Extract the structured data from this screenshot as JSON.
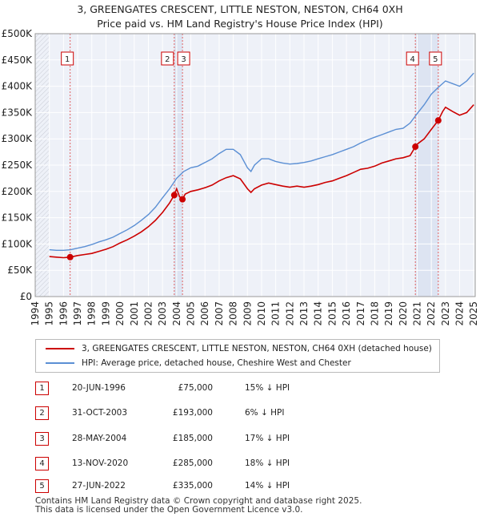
{
  "title_line1": "3, GREENGATES CRESCENT, LITTLE NESTON, NESTON, CH64 0XH",
  "title_line2": "Price paid vs. HM Land Registry's House Price Index (HPI)",
  "chart_data": {
    "type": "line",
    "title": "3, GREENGATES CRESCENT, LITTLE NESTON, NESTON, CH64 0XH",
    "subtitle": "Price paid vs. HM Land Registry's House Price Index (HPI)",
    "xlim": [
      1994,
      2025.1
    ],
    "ylim": [
      0,
      500000
    ],
    "x_ticks": [
      1994,
      1995,
      1996,
      1997,
      1998,
      1999,
      2000,
      2001,
      2002,
      2003,
      2004,
      2005,
      2006,
      2007,
      2008,
      2009,
      2010,
      2011,
      2012,
      2013,
      2014,
      2015,
      2016,
      2017,
      2018,
      2019,
      2020,
      2021,
      2022,
      2023,
      2024,
      2025
    ],
    "x_tick_labels": [
      "1994",
      "1995",
      "1996",
      "1997",
      "1998",
      "1999",
      "2000",
      "2001",
      "2002",
      "2003",
      "2004",
      "2005",
      "2006",
      "2007",
      "2008",
      "2009",
      "2010",
      "2011",
      "2012",
      "2013",
      "2014",
      "2015",
      "2016",
      "2017",
      "2018",
      "2019",
      "2020",
      "2021",
      "2022",
      "2023",
      "2024",
      "2025"
    ],
    "y_ticks": [
      0,
      50000,
      100000,
      150000,
      200000,
      250000,
      300000,
      350000,
      400000,
      450000,
      500000
    ],
    "y_tick_labels": [
      "£0",
      "£50K",
      "£100K",
      "£150K",
      "£200K",
      "£250K",
      "£300K",
      "£350K",
      "£400K",
      "£450K",
      "£500K"
    ],
    "data_start": 1995,
    "series": [
      {
        "name": "3, GREENGATES CRESCENT, LITTLE NESTON, NESTON, CH64 0XH (detached house)",
        "color": "#cc0000",
        "x": [
          1995.0,
          1995.5,
          1996.0,
          1996.47,
          1997.0,
          1997.5,
          1998.0,
          1998.5,
          1999.0,
          1999.5,
          2000.0,
          2000.5,
          2001.0,
          2001.5,
          2002.0,
          2002.5,
          2003.0,
          2003.5,
          2003.83,
          2004.0,
          2004.2,
          2004.41,
          2004.6,
          2005.0,
          2005.5,
          2006.0,
          2006.5,
          2007.0,
          2007.5,
          2008.0,
          2008.5,
          2009.0,
          2009.25,
          2009.5,
          2010.0,
          2010.5,
          2011.0,
          2011.5,
          2012.0,
          2012.5,
          2013.0,
          2013.5,
          2014.0,
          2014.5,
          2015.0,
          2015.5,
          2016.0,
          2016.5,
          2017.0,
          2017.5,
          2018.0,
          2018.5,
          2019.0,
          2019.5,
          2020.0,
          2020.5,
          2020.87,
          2021.0,
          2021.5,
          2022.0,
          2022.49,
          2022.8,
          2023.0,
          2023.5,
          2024.0,
          2024.5,
          2025.0
        ],
        "y": [
          76000,
          75000,
          74000,
          75000,
          78000,
          80000,
          82000,
          86000,
          90000,
          95000,
          102000,
          108000,
          115000,
          123000,
          133000,
          145000,
          160000,
          178000,
          193000,
          205000,
          190000,
          185000,
          195000,
          200000,
          203000,
          207000,
          212000,
          220000,
          226000,
          230000,
          224000,
          205000,
          198000,
          205000,
          212000,
          216000,
          213000,
          210000,
          208000,
          210000,
          208000,
          210000,
          213000,
          217000,
          220000,
          225000,
          230000,
          236000,
          242000,
          244000,
          248000,
          254000,
          258000,
          262000,
          264000,
          268000,
          285000,
          290000,
          300000,
          318000,
          335000,
          352000,
          360000,
          352000,
          345000,
          350000,
          365000
        ]
      },
      {
        "name": "HPI: Average price, detached house, Cheshire West and Chester",
        "color": "#5b8fd4",
        "x": [
          1995.0,
          1995.5,
          1996.0,
          1996.5,
          1997.0,
          1997.5,
          1998.0,
          1998.5,
          1999.0,
          1999.5,
          2000.0,
          2000.5,
          2001.0,
          2001.5,
          2002.0,
          2002.5,
          2003.0,
          2003.5,
          2004.0,
          2004.5,
          2005.0,
          2005.5,
          2006.0,
          2006.5,
          2007.0,
          2007.5,
          2008.0,
          2008.5,
          2009.0,
          2009.25,
          2009.5,
          2010.0,
          2010.5,
          2011.0,
          2011.5,
          2012.0,
          2012.5,
          2013.0,
          2013.5,
          2014.0,
          2014.5,
          2015.0,
          2015.5,
          2016.0,
          2016.5,
          2017.0,
          2017.5,
          2018.0,
          2018.5,
          2019.0,
          2019.5,
          2020.0,
          2020.5,
          2021.0,
          2021.5,
          2022.0,
          2022.5,
          2023.0,
          2023.5,
          2024.0,
          2024.5,
          2025.0
        ],
        "y": [
          89000,
          88000,
          88000,
          89000,
          92000,
          95000,
          99000,
          104000,
          108000,
          113000,
          120000,
          127000,
          135000,
          145000,
          156000,
          170000,
          188000,
          205000,
          225000,
          238000,
          245000,
          248000,
          255000,
          262000,
          272000,
          280000,
          280000,
          270000,
          245000,
          238000,
          250000,
          262000,
          262000,
          257000,
          254000,
          252000,
          253000,
          255000,
          258000,
          262000,
          266000,
          270000,
          275000,
          280000,
          285000,
          292000,
          298000,
          303000,
          308000,
          313000,
          318000,
          320000,
          330000,
          348000,
          365000,
          385000,
          398000,
          410000,
          405000,
          400000,
          410000,
          425000
        ]
      }
    ],
    "transactions": [
      {
        "num": "1",
        "x": 1996.47,
        "y": 75000,
        "date": "20-JUN-1996",
        "price": "£75,000",
        "hpi": "15% ↓ HPI"
      },
      {
        "num": "2",
        "x": 2003.83,
        "y": 193000,
        "date": "31-OCT-2003",
        "price": "£193,000",
        "hpi": "6% ↓ HPI"
      },
      {
        "num": "3",
        "x": 2004.41,
        "y": 185000,
        "date": "28-MAY-2004",
        "price": "£185,000",
        "hpi": "17% ↓ HPI"
      },
      {
        "num": "4",
        "x": 2020.87,
        "y": 285000,
        "date": "13-NOV-2020",
        "price": "£285,000",
        "hpi": "18% ↓ HPI"
      },
      {
        "num": "5",
        "x": 2022.49,
        "y": 335000,
        "date": "27-JUN-2022",
        "price": "£335,000",
        "hpi": "14% ↓ HPI"
      }
    ]
  },
  "legend": {
    "property_label": "3, GREENGATES CRESCENT, LITTLE NESTON, NESTON, CH64 0XH (detached house)",
    "hpi_label": "HPI: Average price, detached house, Cheshire West and Chester"
  },
  "footer": {
    "line1": "Contains HM Land Registry data © Crown copyright and database right 2025.",
    "line2": "This data is licensed under the Open Government Licence v3.0."
  }
}
